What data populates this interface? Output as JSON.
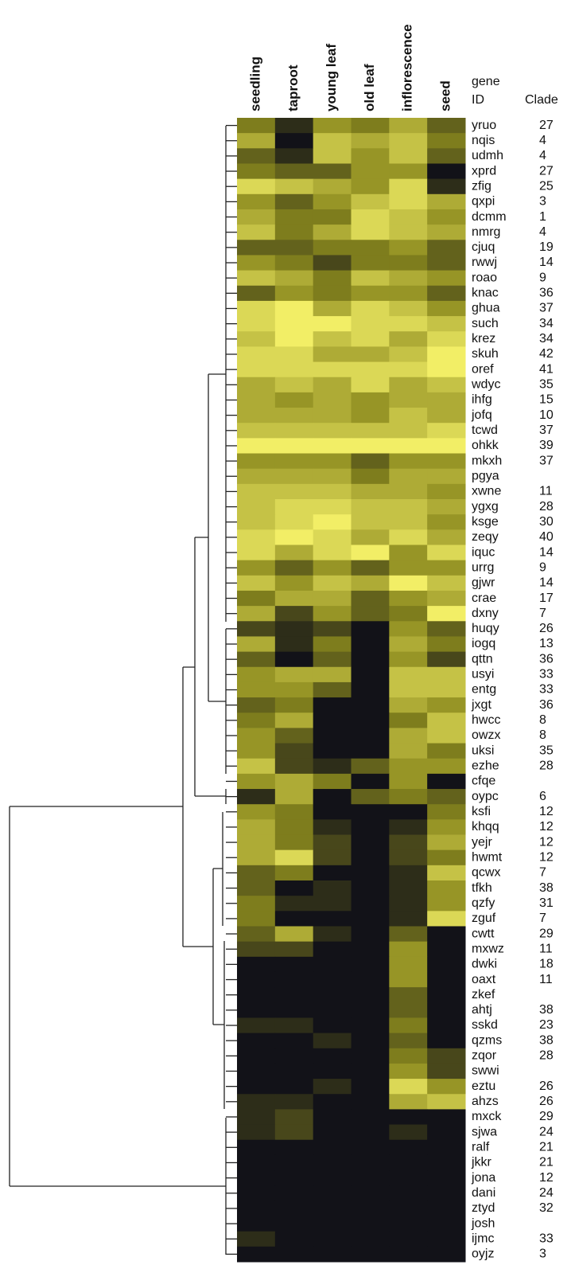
{
  "chart_data": {
    "type": "heatmap",
    "columns": [
      "seedling",
      "taproot",
      "young leaf",
      "old leaf",
      "inflorescence",
      "seed"
    ],
    "row_header": [
      "gene",
      "ID"
    ],
    "clade_header": "Clade",
    "rows": [
      "yruo",
      "nqis",
      "udmh",
      "xprd",
      "zfig",
      "qxpi",
      "dcmm",
      "nmrg",
      "cjuq",
      "rwwj",
      "roao",
      "knac",
      "ghua",
      "such",
      "krez",
      "skuh",
      "oref",
      "wdyc",
      "ihfg",
      "jofq",
      "tcwd",
      "ohkk",
      "mkxh",
      "pgya",
      "xwne",
      "ygxg",
      "ksge",
      "zeqy",
      "iquc",
      "urrg",
      "gjwr",
      "crae",
      "dxny",
      "huqy",
      "iogq",
      "qttn",
      "usyi",
      "entg",
      "jxgt",
      "hwcc",
      "owzx",
      "uksi",
      "ezhe",
      "cfqe",
      "oypc",
      "ksfi",
      "khqq",
      "yejr",
      "hwmt",
      "qcwx",
      "tfkh",
      "qzfy",
      "zguf",
      "cwtt",
      "mxwz",
      "dwki",
      "oaxt",
      "zkef",
      "ahtj",
      "sskd",
      "qzms",
      "zqor",
      "swwi",
      "eztu",
      "ahzs",
      "mxck",
      "sjwa",
      "ralf",
      "jkkr",
      "jona",
      "dani",
      "ztyd",
      "josh",
      "ijmc",
      "oyjz"
    ],
    "clades": [
      27,
      4,
      4,
      27,
      25,
      3,
      1,
      4,
      19,
      14,
      9,
      36,
      37,
      34,
      34,
      42,
      41,
      35,
      15,
      10,
      37,
      39,
      37,
      null,
      11,
      28,
      30,
      40,
      14,
      9,
      14,
      17,
      7,
      26,
      13,
      36,
      33,
      33,
      36,
      8,
      8,
      35,
      28,
      null,
      6,
      12,
      12,
      12,
      12,
      7,
      38,
      31,
      7,
      29,
      11,
      18,
      11,
      null,
      38,
      23,
      38,
      28,
      null,
      26,
      26,
      29,
      24,
      21,
      21,
      12,
      24,
      32,
      null,
      33,
      3
    ],
    "values": [
      [
        4,
        1,
        5,
        4,
        6,
        3
      ],
      [
        6,
        0,
        7,
        6,
        7,
        4
      ],
      [
        3,
        1,
        7,
        5,
        7,
        3
      ],
      [
        4,
        3,
        3,
        5,
        5,
        0
      ],
      [
        8,
        7,
        6,
        5,
        8,
        1
      ],
      [
        5,
        3,
        5,
        7,
        8,
        6
      ],
      [
        6,
        4,
        4,
        8,
        7,
        5
      ],
      [
        7,
        4,
        6,
        8,
        7,
        6
      ],
      [
        3,
        3,
        4,
        4,
        5,
        3
      ],
      [
        5,
        4,
        2,
        4,
        4,
        3
      ],
      [
        7,
        6,
        4,
        7,
        6,
        5
      ],
      [
        3,
        5,
        4,
        5,
        5,
        3
      ],
      [
        8,
        9,
        6,
        8,
        7,
        5
      ],
      [
        8,
        9,
        9,
        8,
        8,
        7
      ],
      [
        7,
        9,
        7,
        8,
        6,
        8
      ],
      [
        8,
        8,
        6,
        6,
        7,
        9
      ],
      [
        8,
        8,
        8,
        8,
        8,
        9
      ],
      [
        6,
        7,
        6,
        8,
        6,
        7
      ],
      [
        6,
        5,
        6,
        5,
        6,
        6
      ],
      [
        6,
        6,
        6,
        5,
        7,
        6
      ],
      [
        7,
        7,
        7,
        7,
        7,
        8
      ],
      [
        9,
        9,
        9,
        9,
        9,
        9
      ],
      [
        5,
        5,
        5,
        3,
        5,
        5
      ],
      [
        6,
        6,
        6,
        4,
        6,
        6
      ],
      [
        7,
        7,
        7,
        6,
        6,
        5
      ],
      [
        7,
        8,
        8,
        7,
        7,
        6
      ],
      [
        7,
        8,
        9,
        7,
        7,
        5
      ],
      [
        8,
        9,
        8,
        6,
        8,
        6
      ],
      [
        8,
        6,
        8,
        9,
        5,
        8
      ],
      [
        5,
        3,
        5,
        3,
        5,
        5
      ],
      [
        7,
        5,
        7,
        6,
        9,
        7
      ],
      [
        4,
        6,
        6,
        3,
        5,
        6
      ],
      [
        6,
        2,
        5,
        3,
        4,
        9
      ],
      [
        2,
        1,
        2,
        0,
        5,
        3
      ],
      [
        6,
        1,
        4,
        0,
        6,
        4
      ],
      [
        3,
        0,
        3,
        0,
        5,
        2
      ],
      [
        5,
        6,
        6,
        0,
        7,
        7
      ],
      [
        5,
        5,
        3,
        0,
        7,
        7
      ],
      [
        3,
        4,
        0,
        0,
        6,
        5
      ],
      [
        4,
        6,
        0,
        0,
        4,
        7
      ],
      [
        5,
        3,
        0,
        0,
        6,
        7
      ],
      [
        5,
        2,
        0,
        0,
        6,
        4
      ],
      [
        7,
        2,
        1,
        3,
        5,
        5
      ],
      [
        5,
        6,
        4,
        0,
        5,
        0
      ],
      [
        1,
        6,
        0,
        3,
        4,
        3
      ],
      [
        5,
        4,
        0,
        0,
        0,
        4
      ],
      [
        6,
        4,
        1,
        0,
        1,
        5
      ],
      [
        6,
        4,
        2,
        0,
        2,
        6
      ],
      [
        6,
        8,
        2,
        0,
        2,
        4
      ],
      [
        3,
        4,
        0,
        0,
        1,
        7
      ],
      [
        3,
        0,
        1,
        0,
        1,
        5
      ],
      [
        4,
        1,
        1,
        0,
        1,
        5
      ],
      [
        4,
        0,
        0,
        0,
        1,
        8
      ],
      [
        3,
        6,
        1,
        0,
        3,
        0
      ],
      [
        2,
        2,
        0,
        0,
        5,
        0
      ],
      [
        0,
        0,
        0,
        0,
        5,
        0
      ],
      [
        0,
        0,
        0,
        0,
        5,
        0
      ],
      [
        0,
        0,
        0,
        0,
        3,
        0
      ],
      [
        0,
        0,
        0,
        0,
        3,
        0
      ],
      [
        1,
        1,
        0,
        0,
        4,
        0
      ],
      [
        0,
        0,
        1,
        0,
        3,
        0
      ],
      [
        0,
        0,
        0,
        0,
        4,
        2
      ],
      [
        0,
        0,
        0,
        0,
        5,
        2
      ],
      [
        0,
        0,
        1,
        0,
        8,
        5
      ],
      [
        1,
        1,
        0,
        0,
        6,
        7
      ],
      [
        1,
        2,
        0,
        0,
        0,
        0
      ],
      [
        1,
        2,
        0,
        0,
        1,
        0
      ],
      [
        0,
        0,
        0,
        0,
        0,
        0
      ],
      [
        0,
        0,
        0,
        0,
        0,
        0
      ],
      [
        0,
        0,
        0,
        0,
        0,
        0
      ],
      [
        0,
        0,
        0,
        0,
        0,
        0
      ],
      [
        0,
        0,
        0,
        0,
        0,
        0
      ],
      [
        0,
        0,
        0,
        0,
        0,
        0
      ],
      [
        1,
        0,
        0,
        0,
        0,
        0
      ],
      [
        0,
        0,
        0,
        0,
        0,
        0
      ]
    ],
    "colors": [
      "#121218",
      "#8c8a1e",
      "#f2ee66"
    ]
  }
}
